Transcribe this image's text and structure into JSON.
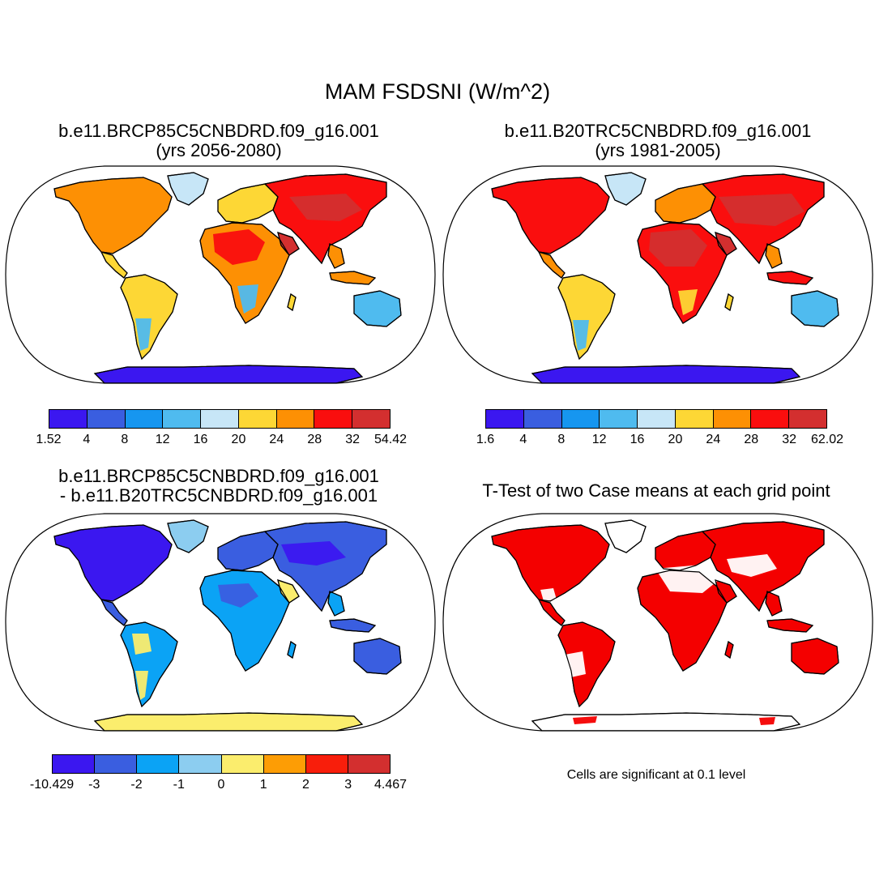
{
  "title": "MAM FSDSNI (W/m^2)",
  "panels": [
    {
      "id": "future",
      "title_line1": "b.e11.BRCP85C5CNBDRD.f09_g16.001",
      "title_line2": "(yrs 2056-2080)",
      "colorbar": {
        "colors": [
          "#3b17f0",
          "#3a5ee0",
          "#1696f0",
          "#4fbbef",
          "#c7e6f7",
          "#fdd735",
          "#fd9004",
          "#fa0e0e",
          "#d32f2f"
        ],
        "labels": [
          "1.52",
          "4",
          "8",
          "12",
          "16",
          "20",
          "24",
          "28",
          "32",
          "54.42"
        ]
      }
    },
    {
      "id": "historical",
      "title_line1": "b.e11.B20TRC5CNBDRD.f09_g16.001",
      "title_line2": "(yrs 1981-2005)",
      "colorbar": {
        "colors": [
          "#3b17f0",
          "#3a5ee0",
          "#1696f0",
          "#4fbbef",
          "#c7e6f7",
          "#fdd735",
          "#fd9004",
          "#fa0e0e",
          "#d32f2f"
        ],
        "labels": [
          "1.6",
          "4",
          "8",
          "12",
          "16",
          "20",
          "24",
          "28",
          "32",
          "62.02"
        ]
      }
    },
    {
      "id": "difference",
      "title_line1": "b.e11.BRCP85C5CNBDRD.f09_g16.001",
      "title_line2": "- b.e11.B20TRC5CNBDRD.f09_g16.001",
      "colorbar": {
        "colors": [
          "#3b17f0",
          "#3a5ee0",
          "#0ba3f5",
          "#8ccdf0",
          "#fbed6d",
          "#fd9d05",
          "#f81e0b",
          "#d32f2f"
        ],
        "labels": [
          "-10.429",
          "-3",
          "-2",
          "-1",
          "0",
          "1",
          "2",
          "3",
          "4.467"
        ]
      }
    },
    {
      "id": "ttest",
      "title_line1": "T-Test of two Case means at each grid point",
      "note": "Cells are significant at 0.1 level",
      "sig_color": "#f40000"
    }
  ]
}
